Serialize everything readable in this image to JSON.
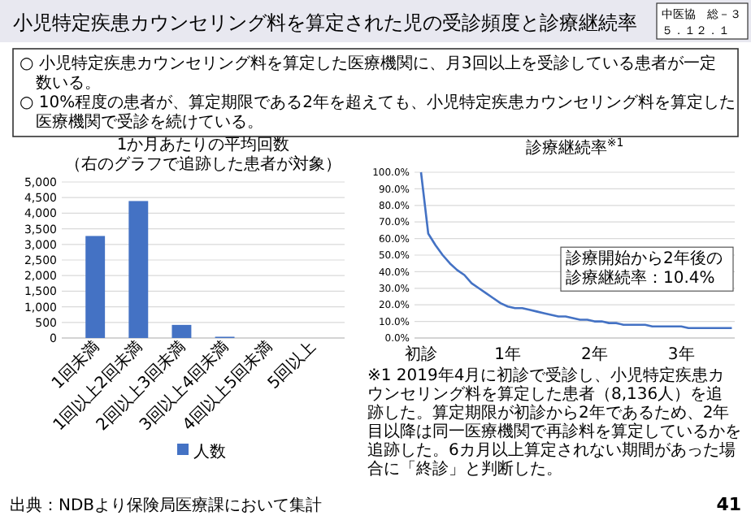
{
  "chart_data": [
    {
      "type": "other",
      "title": "小児特定疾患カウンセリング料を算定された児の受診頻度と診療継続率",
      "annotations": [
        "○ 小児特定疾患カウンセリング料を算定した医療機関に、月3回以上を受診している患者が一定数いる。",
        "○ 10%程度の患者が、算定期限である2年を超えても、小児特定疾患カウンセリング料を算定した医療機関で受診を続けている。",
        "中医協　総－３",
        "５．１２．１",
        "出典：NDBより保険局医療課において集計",
        "41"
      ]
    },
    {
      "type": "bar",
      "title": "1か月あたりの平均回数",
      "subtitle": "（右のグラフで追跡した患者が対象）",
      "categories": [
        "1回未満",
        "1回以上2回未満",
        "2回以上3回未満",
        "3回以上4回未満",
        "4回以上5回未満",
        "5回以上"
      ],
      "series": [
        {
          "name": "人数",
          "color": "#4472c4",
          "values": [
            3270,
            4390,
            420,
            40,
            0,
            0
          ]
        }
      ],
      "ylim": [
        0,
        5000
      ],
      "yticks": [
        {
          "value": 0,
          "label": "0"
        },
        {
          "value": 500,
          "label": "500"
        },
        {
          "value": 1000,
          "label": "1,000"
        },
        {
          "value": 1500,
          "label": "1,500"
        },
        {
          "value": 2000,
          "label": "2,000"
        },
        {
          "value": 2500,
          "label": "2,500"
        },
        {
          "value": 3000,
          "label": "3,000"
        },
        {
          "value": 3500,
          "label": "3,500"
        },
        {
          "value": 4000,
          "label": "4,000"
        },
        {
          "value": 4500,
          "label": "4,500"
        },
        {
          "value": 5000,
          "label": "5,000"
        }
      ],
      "grid": "y",
      "legend": "bottom"
    },
    {
      "type": "line",
      "title": "診療継続率$^{※1}$",
      "categories": [
        "初診",
        null,
        null,
        null,
        null,
        null,
        null,
        null,
        null,
        null,
        null,
        null,
        "1年",
        null,
        null,
        null,
        null,
        null,
        null,
        null,
        null,
        null,
        null,
        null,
        "2年",
        null,
        null,
        null,
        null,
        null,
        null,
        null,
        null,
        null,
        null,
        null,
        "3年",
        null,
        null,
        null,
        null,
        null,
        null,
        null
      ],
      "series": [
        {
          "color": "#4472c4",
          "values": [
            100,
            63,
            56,
            50,
            45,
            41,
            38,
            33,
            30,
            27,
            24,
            21,
            19,
            18,
            18,
            17,
            16,
            15,
            14,
            13,
            13,
            12,
            11,
            11,
            10,
            10,
            9,
            9,
            8,
            8,
            8,
            8,
            7,
            7,
            7,
            7,
            7,
            6,
            6,
            6,
            6,
            6,
            6,
            6
          ]
        }
      ],
      "ylim": [
        0,
        100
      ],
      "yticks": [
        {
          "value": 0,
          "label": "0.0%"
        },
        {
          "value": 10,
          "label": "10.0%"
        },
        {
          "value": 20,
          "label": "20.0%"
        },
        {
          "value": 30,
          "label": "30.0%"
        },
        {
          "value": 40,
          "label": "40.0%"
        },
        {
          "value": 50,
          "label": "50.0%"
        },
        {
          "value": 60,
          "label": "60.0%"
        },
        {
          "value": 70,
          "label": "70.0%"
        },
        {
          "value": 80,
          "label": "80.0%"
        },
        {
          "value": 90,
          "label": "90.0%"
        },
        {
          "value": 100,
          "label": "100.0%"
        }
      ],
      "grid": "y",
      "marker": "none",
      "line_style": "solid",
      "annotations": [
        "診療開始から2年後の診療継続率：10.4%",
        "※1 2019年4月に初診で受診し、小児特定疾患カウンセリング料を算定した患者（8,136人）を追跡した。算定期限が初診から2年であるため、2年目以降は同一医療機関で再診料を算定しているかを追跡した。6カ月以上算定されない期間があった場合に「終診」と判断した。"
      ]
    }
  ]
}
